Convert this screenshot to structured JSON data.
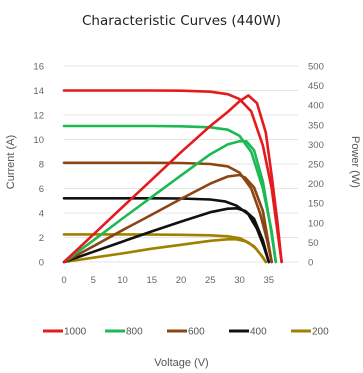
{
  "chart_data": {
    "type": "line",
    "title": "Characteristic Curves (440W)",
    "xlabel": "Voltage (V)",
    "ylabel": "Current (A)",
    "y2label": "Power (W)",
    "xlim": [
      0,
      40
    ],
    "ylim": [
      0,
      16
    ],
    "y2lim": [
      0,
      500
    ],
    "xticks": [
      0,
      5,
      10,
      15,
      20,
      25,
      30,
      35
    ],
    "yticks": [
      0,
      2,
      4,
      6,
      8,
      10,
      12,
      14,
      16
    ],
    "y2ticks": [
      0,
      50,
      100,
      150,
      200,
      250,
      300,
      350,
      400,
      450,
      500
    ],
    "grid": true,
    "legend_position": "bottom",
    "series": [
      {
        "name": "1000",
        "color": "#e41a1c",
        "current": {
          "x": [
            0,
            5,
            10,
            15,
            20,
            25,
            28,
            30,
            32,
            34,
            35.5,
            36.5,
            37.2
          ],
          "y": [
            14.0,
            14.0,
            14.0,
            14.0,
            13.98,
            13.9,
            13.7,
            13.3,
            12.3,
            9.5,
            6.0,
            2.5,
            0
          ]
        },
        "power": {
          "x": [
            0,
            5,
            10,
            15,
            20,
            25,
            28,
            30,
            31.5,
            33,
            34.5,
            35.5,
            36.5,
            37.2
          ],
          "y": [
            0,
            70,
            140,
            210,
            280,
            347,
            383,
            410,
            425,
            405,
            330,
            220,
            100,
            0
          ]
        }
      },
      {
        "name": "800",
        "color": "#1db954",
        "current": {
          "x": [
            0,
            5,
            10,
            15,
            20,
            25,
            28,
            30,
            32,
            34,
            35.5,
            36.2
          ],
          "y": [
            11.1,
            11.1,
            11.1,
            11.1,
            11.08,
            11.0,
            10.8,
            10.3,
            9.0,
            6.0,
            2.5,
            0
          ]
        },
        "power": {
          "x": [
            0,
            5,
            10,
            15,
            20,
            25,
            28,
            30,
            31.2,
            32.5,
            34,
            35.3,
            36.2
          ],
          "y": [
            0,
            55,
            111,
            166,
            221,
            275,
            300,
            308,
            308,
            285,
            205,
            90,
            0
          ]
        }
      },
      {
        "name": "600",
        "color": "#8b4513",
        "current": {
          "x": [
            0,
            5,
            10,
            15,
            20,
            25,
            28,
            30,
            32,
            33.5,
            34.7,
            35.5
          ],
          "y": [
            8.1,
            8.1,
            8.1,
            8.1,
            8.08,
            8.0,
            7.8,
            7.3,
            6.0,
            4.0,
            1.8,
            0
          ]
        },
        "power": {
          "x": [
            0,
            5,
            10,
            15,
            20,
            25,
            28,
            30,
            31,
            32.5,
            34,
            35.5
          ],
          "y": [
            0,
            40,
            81,
            121,
            161,
            200,
            218,
            222,
            215,
            190,
            130,
            0
          ]
        }
      },
      {
        "name": "400",
        "color": "#111111",
        "current": {
          "x": [
            0,
            5,
            10,
            15,
            20,
            25,
            27.5,
            29.5,
            31.5,
            33,
            34.2,
            35.0
          ],
          "y": [
            5.2,
            5.2,
            5.2,
            5.2,
            5.18,
            5.1,
            4.95,
            4.6,
            3.9,
            2.7,
            1.2,
            0
          ]
        },
        "power": {
          "x": [
            0,
            5,
            10,
            15,
            20,
            25,
            28,
            29.5,
            31,
            32.5,
            34,
            35.0
          ],
          "y": [
            0,
            26,
            52,
            78,
            103,
            127,
            136,
            137,
            130,
            110,
            55,
            0
          ]
        }
      },
      {
        "name": "200",
        "color": "#a08000",
        "current": {
          "x": [
            0,
            5,
            10,
            15,
            20,
            25,
            28,
            30,
            31.5,
            32.8,
            33.8,
            34.5
          ],
          "y": [
            2.25,
            2.25,
            2.25,
            2.24,
            2.22,
            2.18,
            2.1,
            1.95,
            1.6,
            1.1,
            0.5,
            0
          ]
        },
        "power": {
          "x": [
            0,
            5,
            10,
            15,
            20,
            25,
            28,
            29.5,
            31,
            32.5,
            34,
            34.5
          ],
          "y": [
            0,
            11,
            22,
            34,
            44,
            54,
            58,
            58,
            53,
            40,
            12,
            0
          ]
        }
      }
    ]
  }
}
